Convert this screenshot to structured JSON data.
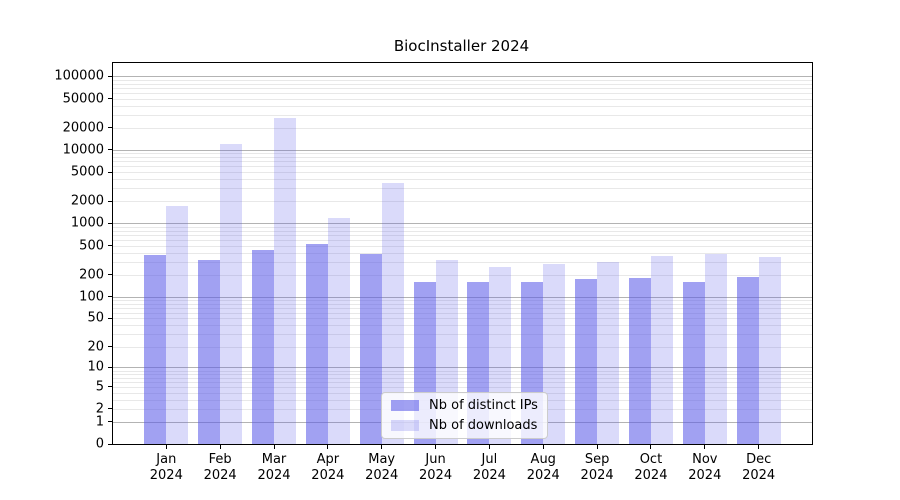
{
  "title": "BiocInstaller 2024",
  "legend": {
    "position": "lower center",
    "items": [
      {
        "label": "Nb of distinct IPs"
      },
      {
        "label": "Nb of downloads"
      }
    ]
  },
  "chart_data": {
    "type": "bar",
    "title": "BiocInstaller 2024",
    "categories": [
      "Jan 2024",
      "Feb 2024",
      "Mar 2024",
      "Apr 2024",
      "May 2024",
      "Jun 2024",
      "Jul 2024",
      "Aug 2024",
      "Sep 2024",
      "Oct 2024",
      "Nov 2024",
      "Dec 2024"
    ],
    "series": [
      {
        "name": "Nb of distinct IPs",
        "fill": "rgba(88,88,232,0.56)",
        "color_on_white": "#a2a2ef",
        "values": [
          370,
          315,
          435,
          530,
          380,
          160,
          160,
          160,
          177,
          181,
          161,
          185
        ]
      },
      {
        "name": "Nb of downloads",
        "fill": "rgba(88,88,232,0.22)",
        "color_on_white": "#dcdcf8",
        "values": [
          1730,
          12200,
          27000,
          1200,
          3550,
          321,
          256,
          283,
          299,
          364,
          381,
          352
        ]
      }
    ],
    "xlabel": "",
    "ylabel": "",
    "yscale": "log1p",
    "ylim": [
      0,
      140000
    ],
    "yticks": [
      0,
      1,
      2,
      5,
      10,
      20,
      50,
      100,
      200,
      500,
      1000,
      2000,
      5000,
      10000,
      20000,
      50000,
      100000
    ],
    "grid": {
      "enabled": true,
      "major_color": "#b3b3b3",
      "minor_color": "#e8e8e8"
    },
    "legend_position": "lower center",
    "background": "#ffffff",
    "axis_color": "#000000"
  }
}
